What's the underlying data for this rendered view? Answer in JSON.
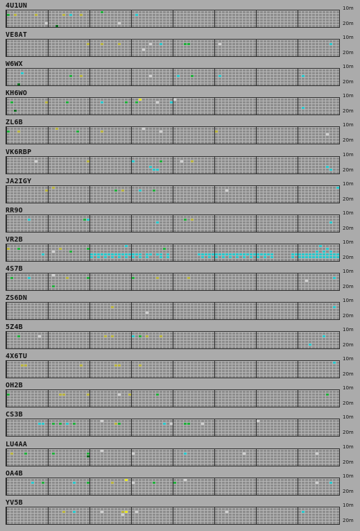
{
  "band_top_label": "10m",
  "band_bottom_label": "20m",
  "colors": {
    "green": "#1fae3a",
    "yellow": "#b8b23c",
    "cyan": "#27c7cc",
    "white": "#cfcfcf",
    "darkgreen": "#0d6a1f",
    "brightyellow": "#e6e61e"
  },
  "beacons": [
    {
      "callsign": "4U1UN"
    },
    {
      "callsign": "VE8AT"
    },
    {
      "callsign": "W6WX"
    },
    {
      "callsign": "KH6WO"
    },
    {
      "callsign": "ZL6B"
    },
    {
      "callsign": "VK6RBP"
    },
    {
      "callsign": "JA2IGY"
    },
    {
      "callsign": "RR9O"
    },
    {
      "callsign": "VR2B"
    },
    {
      "callsign": "4S7B"
    },
    {
      "callsign": "ZS6DN"
    },
    {
      "callsign": "5Z4B"
    },
    {
      "callsign": "4X6TU"
    },
    {
      "callsign": "OH2B"
    },
    {
      "callsign": "CS3B"
    },
    {
      "callsign": "LU4AA"
    },
    {
      "callsign": "OA4B"
    },
    {
      "callsign": "YV5B"
    }
  ]
}
